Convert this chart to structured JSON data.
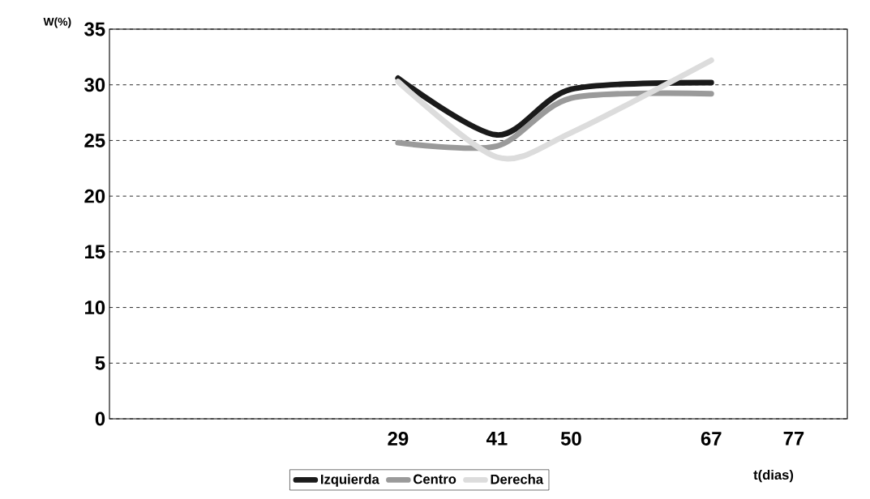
{
  "chart_data": {
    "type": "line",
    "xlabel": "t(dias)",
    "ylabel": "W(%)",
    "x": [
      29,
      41,
      50,
      67
    ],
    "series": [
      {
        "name": "Izquierda",
        "color": "#1a1a1a",
        "values": [
          30.6,
          25.5,
          29.6,
          30.2
        ]
      },
      {
        "name": "Centro",
        "color": "#9a9a9a",
        "values": [
          24.8,
          24.5,
          28.8,
          29.2
        ]
      },
      {
        "name": "Derecha",
        "color": "#dcdcdc",
        "values": [
          30.3,
          23.5,
          25.7,
          32.2
        ]
      }
    ],
    "xlim": [
      -6,
      83.5
    ],
    "xticks": [
      29,
      41,
      50,
      67,
      77
    ],
    "ylim": [
      0,
      35
    ],
    "yticks": [
      0,
      5,
      10,
      15,
      20,
      25,
      30,
      35
    ],
    "grid": "y",
    "legend": "bottom",
    "marker": "none",
    "line_style": "solid"
  }
}
